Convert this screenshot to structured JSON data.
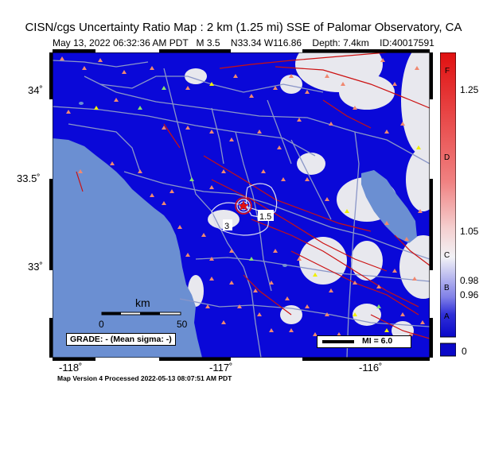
{
  "header": {
    "title": "CISN/cgs Uncertainty Ratio Map : 2 km (1.25 mi) SSE of Palomar Observatory, CA",
    "subtitle": "May 13, 2022 06:32:36 AM PDT   M 3.5    N33.34 W116.86    Depth: 7.4km    ID:40017591"
  },
  "footer": "Map Version 4 Processed 2022-05-13 08:07:51 AM PDT",
  "axes": {
    "lat_ticks": [
      "34˚",
      "33.5˚",
      "33˚"
    ],
    "lon_ticks": [
      "-118˚",
      "-117˚",
      "-116˚"
    ]
  },
  "map": {
    "contour_labels": [
      "3",
      "1.5"
    ],
    "scalebar": {
      "title": "km",
      "start": "0",
      "end": "50"
    },
    "grade_text": "GRADE: - (Mean sigma: -)",
    "mi_legend": "MI = 6.0",
    "colors": {
      "water": "#6b8fd2",
      "high_uncertainty": "#0a08d8",
      "low_uncertainty": "#e8e8ee",
      "fault": "#cc1010",
      "road": "#8a96c8",
      "station_triangle": "#f08870",
      "station_triangle_alt": "#88e070",
      "station_triangle_yellow": "#f0f000"
    }
  },
  "colorbar": {
    "grades": [
      "F",
      "D",
      "C",
      "B",
      "A"
    ],
    "ticks": [
      "1.25",
      "1.05",
      "0.98",
      "0.96",
      "0"
    ]
  }
}
